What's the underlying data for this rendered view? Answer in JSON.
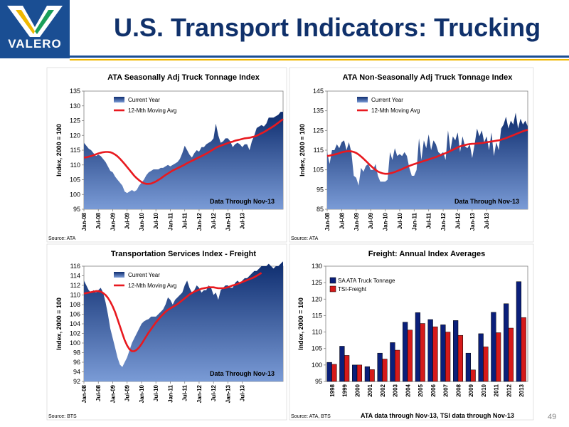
{
  "header": {
    "logo_text": "VALERO",
    "title": "U.S. Transport Indicators:  Trucking",
    "page_number": "49"
  },
  "colors": {
    "navy": "#10316b",
    "area": "#1f3f86",
    "red": "#e8191f",
    "gold": "#f0b800",
    "blue_bar": "#0a1f7a",
    "red_bar": "#d61a1a"
  },
  "chart_data": [
    {
      "type": "area",
      "title": "ATA Seasonally Adj Truck Tonnage Index",
      "ylabel": "Index, 2000 = 100",
      "ylim": [
        95,
        135
      ],
      "yticks": [
        95,
        100,
        105,
        110,
        115,
        120,
        125,
        130,
        135
      ],
      "xticks": [
        "Jan-08",
        "Jul-08",
        "Jan-09",
        "Jul-09",
        "Jan-10",
        "Jul-10",
        "Jan-11",
        "Jul-11",
        "Jan-12",
        "Jul-12",
        "Jan-13",
        "Jul-13"
      ],
      "source": "Source:  ATA",
      "note": "Data Through Nov-13",
      "legend": [
        "Current Year",
        "12-Mth Moving Avg"
      ],
      "series": [
        {
          "name": "Current Year",
          "values": [
            117.5,
            116.5,
            115.5,
            115,
            114,
            113,
            113.5,
            113,
            112,
            111,
            109.5,
            108,
            107.5,
            106,
            105,
            104,
            103,
            101,
            100.5,
            101,
            101.5,
            101,
            101.5,
            103,
            104,
            105,
            106.5,
            107.5,
            108,
            108.5,
            108.5,
            108.5,
            109,
            109,
            109.5,
            110,
            109.5,
            110,
            110.5,
            111,
            112,
            114,
            116.5,
            115,
            113.5,
            112.5,
            114,
            115,
            114.5,
            116,
            116,
            117,
            117.5,
            118,
            119,
            124,
            120,
            117.5,
            118,
            119,
            119,
            118,
            116,
            117,
            117.5,
            117,
            116,
            117,
            117,
            115,
            118,
            120,
            122.5,
            123,
            123.5,
            123,
            124,
            126,
            126,
            126,
            126.5,
            127,
            128,
            128
          ]
        },
        {
          "name": "12-Mth Moving Avg",
          "values": [
            112.5,
            112.6,
            112.8,
            113,
            113.3,
            113.6,
            113.9,
            114.1,
            114.3,
            114.4,
            114.4,
            114.3,
            114,
            113.5,
            112.9,
            112.1,
            111.2,
            110.3,
            109.3,
            108.3,
            107.3,
            106.3,
            105.5,
            104.8,
            104.2,
            103.8,
            103.6,
            103.6,
            103.7,
            104,
            104.4,
            104.9,
            105.4,
            106,
            106.6,
            107.1,
            107.6,
            108.1,
            108.5,
            108.9,
            109.3,
            109.7,
            110.1,
            110.6,
            111,
            111.4,
            111.8,
            112.2,
            112.6,
            113,
            113.4,
            113.8,
            114.3,
            114.8,
            115.3,
            115.8,
            116.2,
            116.5,
            116.8,
            117.1,
            117.4,
            117.7,
            117.9,
            118.2,
            118.4,
            118.6,
            118.8,
            119,
            119.1,
            119.2,
            119.4,
            119.6,
            119.9,
            120.3,
            120.7,
            121.1,
            121.6,
            122.1,
            122.6,
            123.1,
            123.7,
            124.3,
            124.9,
            125.5
          ]
        }
      ]
    },
    {
      "type": "area",
      "title": "ATA Non-Seasonally Adj Truck Tonnage Index",
      "ylabel": "Index, 2000 = 100",
      "ylim": [
        85,
        145
      ],
      "yticks": [
        85,
        95,
        105,
        115,
        125,
        135,
        145
      ],
      "xticks": [
        "Jan-08",
        "Jul-08",
        "Jan-09",
        "Jul-09",
        "Jan-10",
        "Jul-10",
        "Jan-11",
        "Jul-11",
        "Jan-12",
        "Jul-12",
        "Jan-13",
        "Jul-13"
      ],
      "source": "Source:  ATA",
      "note": "Data Through Nov-13",
      "legend": [
        "Current Year",
        "12-Mth Moving Avg"
      ],
      "series": [
        {
          "name": "Current Year",
          "values": [
            114,
            108,
            115,
            115,
            118,
            116,
            119,
            120,
            115,
            119,
            114,
            102,
            101,
            97,
            106,
            104,
            107,
            108,
            105,
            105,
            108,
            102,
            99,
            99,
            99,
            100,
            114,
            110,
            116,
            112,
            113,
            112,
            114,
            112,
            106,
            102,
            102,
            105,
            121,
            110,
            120,
            116,
            123,
            115,
            120,
            118,
            114,
            113,
            114,
            110,
            125,
            115,
            122,
            120,
            124,
            114,
            122,
            117,
            116,
            118,
            111,
            118,
            126,
            122,
            125,
            119,
            122,
            115,
            124,
            112,
            119,
            115,
            126,
            128,
            132,
            126,
            130,
            128,
            134,
            126,
            131,
            128,
            130,
            127
          ]
        },
        {
          "name": "12-Mth Moving Avg",
          "values": [
            112,
            112.2,
            112.5,
            112.8,
            113.1,
            113.5,
            113.9,
            114.2,
            114.4,
            114.5,
            114.4,
            114.1,
            113.6,
            112.8,
            111.8,
            110.7,
            109.5,
            108.3,
            107.1,
            106,
            105,
            104.2,
            103.6,
            103.2,
            103,
            103,
            103.2,
            103.5,
            103.9,
            104.4,
            104.9,
            105.4,
            106,
            106.5,
            107,
            107.5,
            107.9,
            108.3,
            108.7,
            109.1,
            109.5,
            109.9,
            110.3,
            110.7,
            111.1,
            111.5,
            112,
            112.5,
            113,
            113.5,
            114,
            114.6,
            115.2,
            115.8,
            116.4,
            116.9,
            117.3,
            117.6,
            117.9,
            118.1,
            118.2,
            118.3,
            118.4,
            118.5,
            118.6,
            118.8,
            119,
            119.2,
            119.4,
            119.6,
            119.8,
            120,
            120.3,
            120.7,
            121.1,
            121.6,
            122.1,
            122.6,
            123.1,
            123.6,
            124.1,
            124.6,
            125,
            125.3
          ]
        }
      ]
    },
    {
      "type": "area",
      "title": "Transportation Services Index - Freight",
      "ylabel": "Index, 2000 = 100",
      "ylim": [
        92,
        116
      ],
      "yticks": [
        92,
        94,
        96,
        98,
        100,
        102,
        104,
        106,
        108,
        110,
        112,
        114,
        116
      ],
      "xticks": [
        "Jan-08",
        "Jul-08",
        "Jan-09",
        "Jul-09",
        "Jan-10",
        "Jul-10",
        "Jan-11",
        "Jul-11",
        "Jan-12",
        "Jul-12",
        "Jan-13",
        "Jul-13"
      ],
      "source": "Source:  BTS",
      "note": "Data Through Nov-13",
      "legend": [
        "Current Year",
        "12-Mth Moving Avg"
      ],
      "series": [
        {
          "name": "Current Year",
          "values": [
            113,
            112,
            111,
            110.5,
            111,
            110.5,
            111,
            111.5,
            110.5,
            108.5,
            106,
            103,
            101,
            99,
            97,
            95.5,
            95,
            96,
            97,
            98.5,
            100,
            101,
            102,
            103,
            104,
            104.5,
            104.8,
            105,
            105.5,
            105.5,
            105.5,
            106,
            106.5,
            107,
            108,
            109.5,
            109,
            108,
            109,
            109.5,
            110,
            110.5,
            112,
            113,
            111.5,
            110.5,
            111,
            112,
            111.5,
            110.5,
            111,
            111,
            112,
            111.5,
            110,
            110.5,
            109,
            111,
            111.5,
            112,
            112,
            111.5,
            111.5,
            112.5,
            113,
            112.5,
            113,
            113.5,
            113.5,
            114,
            114.5,
            115,
            115,
            115.5,
            116,
            116,
            116,
            116.5,
            116,
            115.5,
            116,
            116,
            116.5,
            117
          ]
        },
        {
          "name": "12-Mth Moving Avg",
          "values": [
            110.3,
            110.4,
            110.5,
            110.6,
            110.7,
            110.8,
            110.8,
            110.7,
            110.4,
            110,
            109.4,
            108.6,
            107.6,
            106.4,
            105,
            103.5,
            102,
            100.6,
            99.5,
            98.7,
            98.3,
            98.3,
            98.6,
            99.1,
            99.8,
            100.6,
            101.4,
            102.2,
            102.9,
            103.6,
            104.3,
            104.9,
            105.5,
            106,
            106.5,
            106.9,
            107.2,
            107.5,
            107.8,
            108.1,
            108.5,
            108.9,
            109.3,
            109.7,
            110.1,
            110.4,
            110.7,
            110.9,
            111.1,
            111.3,
            111.4,
            111.5,
            111.6,
            111.6,
            111.6,
            111.5,
            111.4,
            111.4,
            111.4,
            111.5,
            111.6,
            111.8,
            112,
            112.1,
            112.3,
            112.5,
            112.7,
            112.9,
            113.1,
            113.3,
            113.5,
            113.7,
            114,
            114.3,
            114.6
          ]
        }
      ]
    },
    {
      "type": "bar",
      "title": "Freight: Annual Index Averages",
      "ylabel": "Index, 2000 = 100",
      "ylim": [
        95,
        130
      ],
      "yticks": [
        95,
        100,
        105,
        110,
        115,
        120,
        125,
        130
      ],
      "categories": [
        "1998",
        "1999",
        "2000",
        "2001",
        "2002",
        "2003",
        "2004",
        "2005",
        "2006",
        "2007",
        "2008",
        "2009",
        "2010",
        "2011",
        "2012",
        "2013"
      ],
      "source": "Source:  ATA, BTS",
      "note": "ATA data through Nov-13, TSI data through Nov-13",
      "series": [
        {
          "name": "SA ATA Truck Tonnage",
          "values": [
            100.8,
            105.7,
            100,
            99.5,
            103.6,
            106.8,
            113,
            115.9,
            113.8,
            112.2,
            113.5,
            103.6,
            109.5,
            116,
            118.6,
            125.3
          ]
        },
        {
          "name": "TSI-Freight",
          "values": [
            100.2,
            102.9,
            100,
            98.6,
            101.8,
            104.5,
            110.6,
            112.6,
            111.6,
            110,
            109,
            98.5,
            105.5,
            109.8,
            111.2,
            114.4
          ]
        }
      ]
    }
  ]
}
